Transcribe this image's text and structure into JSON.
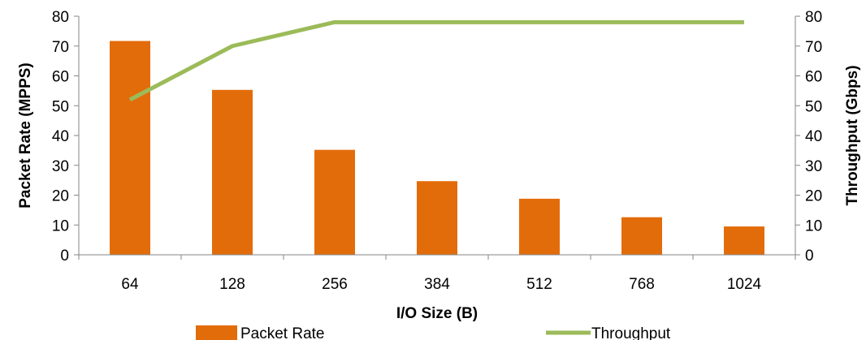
{
  "chart_data": {
    "type": "bar+line",
    "categories": [
      "64",
      "128",
      "256",
      "384",
      "512",
      "768",
      "1024"
    ],
    "series": [
      {
        "name": "Packet Rate",
        "type": "bar",
        "axis": "left",
        "color": "#E36C0A",
        "values": [
          71.7,
          55.3,
          35.2,
          24.7,
          18.8,
          12.6,
          9.5
        ]
      },
      {
        "name": "Throughput",
        "type": "line",
        "axis": "right",
        "color": "#9BBB59",
        "values": [
          52,
          70,
          78,
          78,
          78,
          78,
          78
        ]
      }
    ],
    "xlabel": "I/O Size (B)",
    "ylabel_left": "Packet Rate (MPPS)",
    "ylabel_right": "Throughput (Gbps)",
    "ylim_left": [
      0,
      80
    ],
    "ylim_right": [
      0,
      80
    ],
    "yticks_left": [
      "0",
      "10",
      "20",
      "30",
      "40",
      "50",
      "60",
      "70",
      "80"
    ],
    "yticks_right": [
      "0",
      "10",
      "20",
      "30",
      "40",
      "50",
      "60",
      "70",
      "80"
    ],
    "grid": false,
    "legend_position": "bottom"
  }
}
